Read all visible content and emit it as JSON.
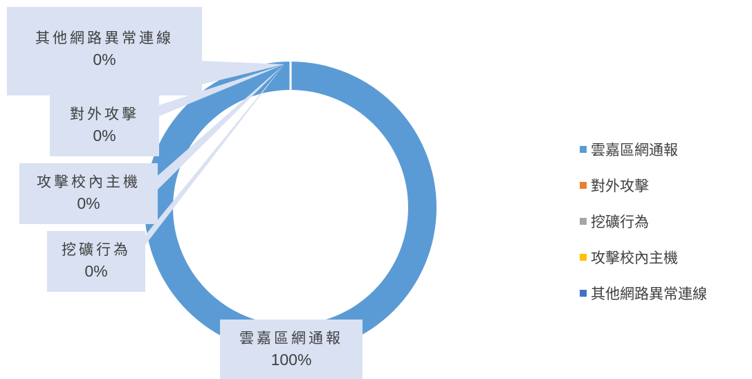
{
  "chart_data": {
    "type": "pie",
    "title": "",
    "series": [
      {
        "values": [
          {
            "label": "雲嘉區網通報",
            "value": 100,
            "display": "100%",
            "color": "#5b9bd5"
          },
          {
            "label": "對外攻擊",
            "value": 0,
            "display": "0%",
            "color": "#ed7d31"
          },
          {
            "label": "挖礦行為",
            "value": 0,
            "display": "0%",
            "color": "#a5a5a5"
          },
          {
            "label": "攻擊校內主機",
            "value": 0,
            "display": "0%",
            "color": "#ffc000"
          },
          {
            "label": "其他網路異常連線",
            "value": 0,
            "display": "0%",
            "color": "#4472c4"
          }
        ]
      }
    ],
    "legend": {
      "placement": "right",
      "entries": [
        "雲嘉區網通報",
        "對外攻擊",
        "挖礦行為",
        "攻擊校內主機",
        "其他網路異常連線"
      ]
    },
    "donut": true
  },
  "labels": {
    "callout_0": {
      "cat": "雲嘉區網通報",
      "pct": "100%"
    },
    "callout_1": {
      "cat": "對外攻擊",
      "pct": "0%"
    },
    "callout_2": {
      "cat": "挖礦行為",
      "pct": "0%"
    },
    "callout_3": {
      "cat": "攻擊校內主機",
      "pct": "0%"
    },
    "callout_4": {
      "cat": "其他網路異常連線",
      "pct": "0%"
    }
  }
}
